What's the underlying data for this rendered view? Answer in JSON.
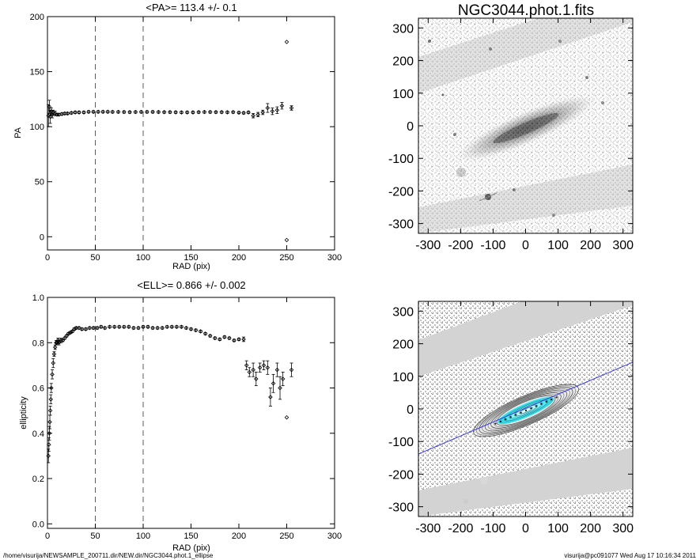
{
  "figure": {
    "image_title": "NGC3044.phot.1.fits",
    "footer_left": "/home/visurija/NEWSAMPLE_200711.dir/NEW.dir/NGC3044.phot.1_ellipse",
    "footer_right": "visurija@pc091077  Wed Aug 17 10:16:34 2011"
  },
  "image_axes": {
    "x_ticks": [
      "-300",
      "-200",
      "-100",
      "0",
      "100",
      "200",
      "300"
    ],
    "y_ticks": [
      "300",
      "200",
      "100",
      "0",
      "-100",
      "-200",
      "-300"
    ],
    "range": [
      -330,
      330
    ]
  },
  "colors": {
    "model_fit": "#40e8f0",
    "major_axis_line": "#3a3ad8"
  },
  "chart_data": [
    {
      "type": "scatter",
      "title": "<PA>= 113.4 +/-   0.1",
      "xlabel": "RAD (pix)",
      "ylabel": "PA",
      "xlim": [
        0,
        300
      ],
      "ylim": [
        -12,
        200
      ],
      "x_ticks": [
        0,
        50,
        100,
        150,
        200,
        250,
        300
      ],
      "y_ticks": [
        0,
        50,
        100,
        150,
        200
      ],
      "vlines": [
        50,
        100
      ],
      "series": [
        {
          "name": "PA",
          "x": [
            1,
            2,
            3,
            4,
            5,
            6,
            8,
            10,
            12,
            15,
            18,
            21,
            25,
            29,
            33,
            38,
            43,
            48,
            53,
            58,
            63,
            68,
            74,
            80,
            86,
            92,
            98,
            104,
            110,
            116,
            122,
            128,
            134,
            140,
            146,
            152,
            158,
            164,
            170,
            176,
            182,
            188,
            194,
            200,
            205,
            210,
            215,
            220,
            225,
            230,
            235,
            240,
            245,
            250,
            250,
            255
          ],
          "y": [
            110,
            118,
            109,
            114,
            111,
            113,
            112,
            111,
            111,
            111.5,
            112,
            112,
            112.5,
            113,
            113,
            113,
            113.5,
            113.5,
            113.5,
            113.5,
            113.5,
            113.4,
            113.4,
            113.3,
            113.2,
            113.3,
            113.4,
            113.4,
            113.4,
            113.3,
            113.2,
            113.2,
            113.1,
            113,
            113,
            113,
            113.2,
            113.3,
            113.3,
            113.2,
            113.2,
            113.1,
            113.2,
            112.8,
            112.5,
            113,
            110,
            111,
            113,
            117,
            114,
            115,
            119,
            177,
            -3,
            117
          ],
          "err": [
            10,
            6,
            6,
            3,
            3,
            2,
            2,
            1,
            1,
            1,
            1,
            1,
            1,
            1,
            1,
            1,
            1,
            1,
            1,
            1,
            1,
            1,
            1,
            1,
            1,
            1,
            1,
            1,
            1,
            1,
            1,
            1,
            1,
            1,
            1,
            1,
            1,
            1,
            1,
            1,
            1,
            1,
            1,
            1,
            1,
            1,
            2,
            2,
            2,
            4,
            3,
            3,
            3,
            0,
            0,
            2
          ]
        }
      ]
    },
    {
      "type": "scatter",
      "title": "<ELL>= 0.866 +/-  0.002",
      "xlabel": "RAD (pix)",
      "ylabel": "ellipticity",
      "xlim": [
        0,
        300
      ],
      "ylim": [
        -0.02,
        1.0
      ],
      "x_ticks": [
        0,
        50,
        100,
        150,
        200,
        250,
        300
      ],
      "y_ticks": [
        0.0,
        0.2,
        0.4,
        0.6,
        0.8,
        1.0
      ],
      "vlines": [
        50,
        100
      ],
      "series": [
        {
          "name": "ellipticity",
          "x": [
            1,
            1.5,
            2,
            2.5,
            3,
            3.5,
            4,
            5,
            6,
            7,
            8,
            9,
            10,
            11,
            12,
            14,
            16,
            18,
            20,
            22,
            24,
            26,
            28,
            30,
            33,
            36,
            40,
            44,
            48,
            52,
            56,
            60,
            65,
            70,
            75,
            80,
            85,
            90,
            95,
            100,
            105,
            110,
            115,
            120,
            125,
            130,
            135,
            140,
            145,
            150,
            155,
            160,
            165,
            170,
            175,
            180,
            185,
            190,
            195,
            200,
            205,
            208,
            211,
            215,
            218,
            222,
            226,
            230,
            233,
            236,
            240,
            243,
            246,
            250,
            255
          ],
          "y": [
            0.3,
            0.35,
            0.4,
            0.45,
            0.5,
            0.55,
            0.6,
            0.66,
            0.71,
            0.75,
            0.78,
            0.8,
            0.8,
            0.81,
            0.8,
            0.81,
            0.81,
            0.82,
            0.83,
            0.84,
            0.845,
            0.85,
            0.86,
            0.865,
            0.865,
            0.86,
            0.86,
            0.865,
            0.865,
            0.865,
            0.87,
            0.865,
            0.87,
            0.87,
            0.87,
            0.87,
            0.87,
            0.865,
            0.865,
            0.87,
            0.87,
            0.865,
            0.865,
            0.865,
            0.87,
            0.87,
            0.87,
            0.87,
            0.865,
            0.86,
            0.855,
            0.85,
            0.84,
            0.83,
            0.82,
            0.815,
            0.825,
            0.82,
            0.81,
            0.815,
            0.815,
            0.7,
            0.67,
            0.68,
            0.64,
            0.69,
            0.7,
            0.69,
            0.56,
            0.62,
            0.68,
            0.6,
            0.64,
            0.47,
            0.68
          ],
          "err": [
            0.03,
            0.03,
            0.03,
            0.03,
            0.02,
            0.02,
            0.02,
            0.02,
            0.02,
            0.01,
            0.01,
            0.01,
            0.01,
            0.01,
            0.01,
            0.01,
            0.005,
            0.005,
            0.005,
            0.005,
            0.005,
            0.005,
            0.005,
            0.005,
            0.005,
            0.005,
            0.005,
            0.005,
            0.005,
            0.005,
            0.005,
            0.005,
            0.005,
            0.005,
            0.005,
            0.005,
            0.005,
            0.005,
            0.005,
            0.005,
            0.005,
            0.005,
            0.005,
            0.005,
            0.005,
            0.005,
            0.005,
            0.005,
            0.005,
            0.005,
            0.005,
            0.005,
            0.005,
            0.005,
            0.005,
            0.005,
            0.005,
            0.005,
            0.005,
            0.005,
            0.01,
            0.02,
            0.02,
            0.03,
            0.03,
            0.02,
            0.02,
            0.03,
            0.04,
            0.04,
            0.03,
            0.05,
            0.03,
            0,
            0.03
          ]
        }
      ]
    }
  ]
}
